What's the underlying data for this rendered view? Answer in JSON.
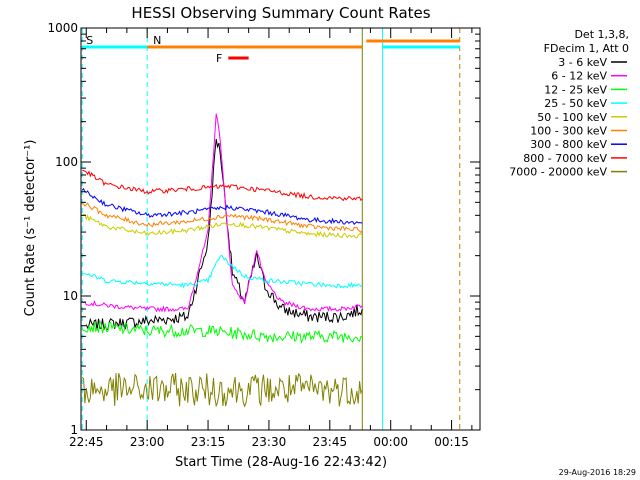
{
  "chart_data": {
    "type": "line",
    "title": "HESSI Observing Summary Count Rates",
    "xlabel": "Start Time (28-Aug-16 22:43:42)",
    "ylabel": "Count Rate (s⁻¹ detector⁻¹)",
    "y_scale": "log",
    "ylim": [
      1,
      1000
    ],
    "xlim": [
      "22:43:42",
      "00:22:00"
    ],
    "x_ticks": [
      "22:45",
      "23:00",
      "23:15",
      "23:30",
      "23:45",
      "00:00",
      "00:15"
    ],
    "y_ticks": [
      "1",
      "10",
      "100",
      "1000"
    ],
    "grid": false,
    "legend_position": "top-right",
    "legend_header": [
      "Det 1,3,8,",
      "FDecim 1, Att 0"
    ],
    "series": [
      {
        "name": "3 - 6 keV",
        "color": "#000000",
        "x": [
          "22:45",
          "23:00",
          "23:10",
          "23:15",
          "23:17",
          "23:18",
          "23:19",
          "23:21",
          "23:24",
          "23:27",
          "23:29",
          "23:33",
          "23:40",
          "23:48",
          "23:53"
        ],
        "y": [
          6,
          6.5,
          7,
          25,
          150,
          120,
          60,
          15,
          9,
          20,
          12,
          8,
          7,
          7,
          8
        ]
      },
      {
        "name": "6 - 12 keV",
        "color": "#ff00ff",
        "x": [
          "22:44",
          "22:50",
          "23:00",
          "23:10",
          "23:15",
          "23:17",
          "23:18",
          "23:19",
          "23:21",
          "23:24",
          "23:27",
          "23:29",
          "23:33",
          "23:40",
          "23:48",
          "23:53"
        ],
        "y": [
          9,
          8.5,
          8,
          8,
          30,
          230,
          150,
          60,
          12,
          9,
          22,
          13,
          9,
          8,
          8,
          8.5
        ]
      },
      {
        "name": "12 - 25 keV",
        "color": "#00ff00",
        "x": [
          "22:44",
          "23:00",
          "23:15",
          "23:30",
          "23:45",
          "23:53"
        ],
        "y": [
          6,
          5.5,
          5.5,
          5,
          5,
          5
        ]
      },
      {
        "name": "25 - 50 keV",
        "color": "#00ffff",
        "x": [
          "22:44",
          "22:50",
          "23:00",
          "23:10",
          "23:15",
          "23:18",
          "23:24",
          "23:30",
          "23:45",
          "23:53"
        ],
        "y": [
          15,
          13,
          12.5,
          12,
          13,
          20,
          14,
          13,
          12,
          12
        ]
      },
      {
        "name": "50 - 100 keV",
        "color": "#cccc00",
        "x": [
          "22:44",
          "22:50",
          "23:00",
          "23:10",
          "23:20",
          "23:30",
          "23:40",
          "23:53"
        ],
        "y": [
          40,
          33,
          29,
          31,
          35,
          32,
          29,
          28
        ]
      },
      {
        "name": "100 - 300 keV",
        "color": "#ff8000",
        "x": [
          "22:44",
          "22:50",
          "23:00",
          "23:10",
          "23:20",
          "23:30",
          "23:40",
          "23:53"
        ],
        "y": [
          50,
          40,
          34,
          36,
          40,
          37,
          33,
          31
        ]
      },
      {
        "name": "300 - 800 keV",
        "color": "#0000ff",
        "x": [
          "22:44",
          "22:50",
          "23:00",
          "23:10",
          "23:20",
          "23:30",
          "23:40",
          "23:53"
        ],
        "y": [
          62,
          48,
          40,
          42,
          46,
          42,
          37,
          35
        ]
      },
      {
        "name": "800 - 7000 keV",
        "color": "#ff0000",
        "x": [
          "22:44",
          "22:50",
          "23:00",
          "23:10",
          "23:20",
          "23:30",
          "23:40",
          "23:53"
        ],
        "y": [
          88,
          68,
          60,
          63,
          66,
          61,
          55,
          53
        ]
      },
      {
        "name": "7000 - 20000 keV",
        "color": "#808000",
        "x": [
          "22:44",
          "23:00",
          "23:15",
          "23:30",
          "23:45",
          "23:53"
        ],
        "y": [
          2,
          2,
          2,
          2,
          2,
          2
        ]
      }
    ],
    "flags": [
      {
        "name": "S",
        "color": "#ff8000",
        "spans": [
          [
            "22:44",
            "23:53"
          ]
        ]
      },
      {
        "name": "N",
        "color": "#00ffff",
        "spans": [
          [
            "22:44",
            "23:00"
          ]
        ]
      },
      {
        "name": "F",
        "color": "#ff0000",
        "spans": [
          [
            "23:20",
            "23:25"
          ]
        ]
      }
    ],
    "flag_ext": [
      {
        "color": "#ff8000",
        "span": [
          "23:54",
          "00:17"
        ]
      },
      {
        "color": "#00ffff",
        "span": [
          "23:58",
          "00:17"
        ]
      }
    ],
    "vlines": [
      {
        "x": "22:44",
        "color": "#00ffff",
        "dashed": true
      },
      {
        "x": "23:00",
        "color": "#00ffff",
        "dashed": true
      },
      {
        "x": "23:53",
        "color": "#808000",
        "dashed": false
      },
      {
        "x": "23:58",
        "color": "#00ffff",
        "dashed": false
      },
      {
        "x": "00:17",
        "color": "#00ffff",
        "dashed": true
      },
      {
        "x": "00:17",
        "color": "#ff8000",
        "dashed": true
      }
    ]
  },
  "footer": {
    "timestamp": "29-Aug-2016 18:29"
  }
}
